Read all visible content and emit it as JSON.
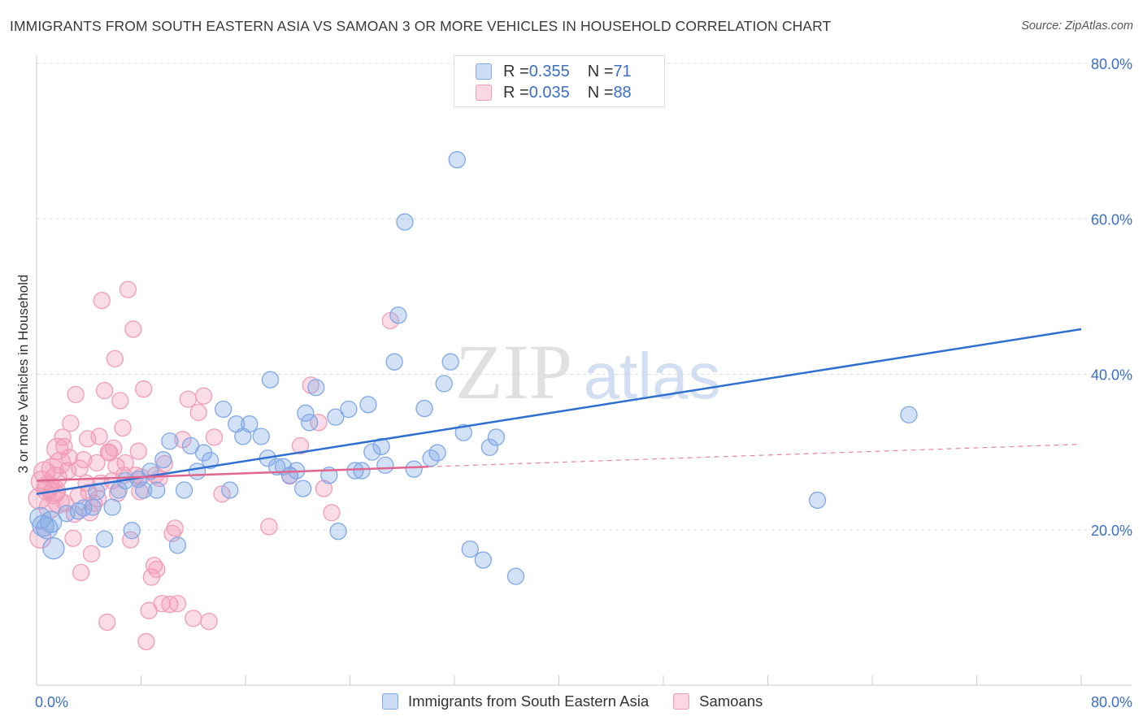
{
  "title": "IMMIGRANTS FROM SOUTH EASTERN ASIA VS SAMOAN 3 OR MORE VEHICLES IN HOUSEHOLD CORRELATION CHART",
  "source": "Source: ZipAtlas.com",
  "watermark": {
    "zip": "ZIP",
    "atlas": "atlas"
  },
  "legend_top": {
    "rows": [
      {
        "r_label": "R = ",
        "r_value": "0.355",
        "n_label": "N = ",
        "n_value": "71",
        "color": "#7fa8e6"
      },
      {
        "r_label": "R = ",
        "r_value": "0.035",
        "n_label": "N = ",
        "n_value": "88",
        "color": "#f29bb7"
      }
    ]
  },
  "legend_bottom": {
    "items": [
      {
        "label": "Immigrants from South Eastern Asia",
        "color": "#7fa8e6"
      },
      {
        "label": "Samoans",
        "color": "#f29bb7"
      }
    ]
  },
  "chart_data": {
    "type": "scatter",
    "title": "IMMIGRANTS FROM SOUTH EASTERN ASIA VS SAMOAN 3 OR MORE VEHICLES IN HOUSEHOLD CORRELATION CHART",
    "xlabel": "",
    "ylabel": "3 or more Vehicles in Household",
    "xlim": [
      0,
      80
    ],
    "ylim": [
      0,
      80
    ],
    "x_tick_labels": [
      "0.0%",
      "80.0%"
    ],
    "y_tick_labels": [
      "20.0%",
      "40.0%",
      "60.0%",
      "80.0%"
    ],
    "y_ticks": [
      20,
      40,
      60,
      80
    ],
    "grid": true,
    "legend_position": "top-center",
    "series": [
      {
        "name": "Immigrants from South Eastern Asia",
        "color": "#7fa8e6",
        "line_color": "#2f6fd0",
        "trend": {
          "x": [
            0,
            80
          ],
          "y": [
            24.6,
            45.8
          ]
        },
        "points": [
          [
            0.3,
            21.5
          ],
          [
            0.8,
            20.2
          ],
          [
            1.3,
            17.6
          ],
          [
            2.3,
            22.1
          ],
          [
            3.2,
            22.4
          ],
          [
            3.6,
            22.8
          ],
          [
            4.3,
            22.9
          ],
          [
            4.6,
            24.9
          ],
          [
            5.2,
            18.8
          ],
          [
            5.8,
            22.9
          ],
          [
            6.3,
            25.1
          ],
          [
            6.8,
            26.3
          ],
          [
            7.3,
            19.9
          ],
          [
            7.8,
            26.5
          ],
          [
            8.2,
            25.1
          ],
          [
            8.7,
            27.5
          ],
          [
            9.2,
            25.1
          ],
          [
            9.7,
            29.0
          ],
          [
            10.2,
            31.4
          ],
          [
            10.8,
            18.0
          ],
          [
            11.3,
            25.1
          ],
          [
            11.8,
            30.8
          ],
          [
            12.3,
            27.5
          ],
          [
            12.8,
            29.9
          ],
          [
            13.3,
            28.9
          ],
          [
            14.3,
            35.5
          ],
          [
            14.8,
            25.1
          ],
          [
            15.3,
            33.6
          ],
          [
            15.8,
            32.0
          ],
          [
            16.3,
            33.6
          ],
          [
            17.2,
            32.0
          ],
          [
            17.7,
            29.2
          ],
          [
            17.9,
            39.3
          ],
          [
            18.4,
            28.1
          ],
          [
            18.9,
            28.1
          ],
          [
            19.4,
            27.0
          ],
          [
            19.9,
            27.6
          ],
          [
            20.4,
            25.3
          ],
          [
            20.6,
            35.0
          ],
          [
            20.9,
            33.8
          ],
          [
            21.4,
            38.3
          ],
          [
            22.4,
            27.0
          ],
          [
            22.9,
            34.5
          ],
          [
            23.1,
            19.8
          ],
          [
            23.9,
            35.5
          ],
          [
            24.4,
            27.6
          ],
          [
            24.9,
            27.6
          ],
          [
            25.4,
            36.1
          ],
          [
            25.7,
            30.0
          ],
          [
            26.4,
            30.7
          ],
          [
            26.7,
            28.3
          ],
          [
            27.4,
            41.6
          ],
          [
            27.7,
            47.6
          ],
          [
            28.2,
            59.6
          ],
          [
            28.9,
            27.8
          ],
          [
            29.7,
            35.6
          ],
          [
            30.2,
            29.2
          ],
          [
            30.7,
            29.9
          ],
          [
            31.2,
            38.8
          ],
          [
            31.7,
            41.6
          ],
          [
            32.2,
            67.6
          ],
          [
            32.7,
            32.5
          ],
          [
            33.2,
            17.5
          ],
          [
            34.2,
            16.1
          ],
          [
            34.7,
            30.6
          ],
          [
            35.2,
            31.9
          ],
          [
            36.7,
            14.0
          ],
          [
            59.8,
            23.8
          ],
          [
            66.8,
            34.8
          ],
          [
            0.5,
            20.5
          ],
          [
            1.1,
            21.0
          ]
        ]
      },
      {
        "name": "Samoans",
        "color": "#f29bb7",
        "line_color": "#e0668f",
        "trend": {
          "x": [
            0,
            30
          ],
          "y": [
            26.3,
            28.1
          ]
        },
        "trend_dashed": {
          "x": [
            30,
            80
          ],
          "y": [
            28.1,
            31.0
          ]
        },
        "points": [
          [
            0.2,
            24.0
          ],
          [
            0.4,
            26.2
          ],
          [
            0.6,
            27.4
          ],
          [
            0.8,
            25.2
          ],
          [
            1.0,
            22.8
          ],
          [
            1.2,
            27.8
          ],
          [
            1.4,
            25.0
          ],
          [
            1.6,
            30.4
          ],
          [
            1.8,
            28.6
          ],
          [
            2.0,
            31.9
          ],
          [
            2.2,
            23.4
          ],
          [
            2.4,
            27.6
          ],
          [
            2.6,
            33.7
          ],
          [
            2.8,
            18.9
          ],
          [
            3.0,
            37.4
          ],
          [
            3.2,
            24.4
          ],
          [
            3.4,
            14.5
          ],
          [
            3.6,
            29.0
          ],
          [
            3.8,
            26.0
          ],
          [
            4.0,
            24.8
          ],
          [
            4.2,
            16.9
          ],
          [
            4.4,
            23.4
          ],
          [
            4.6,
            28.6
          ],
          [
            4.8,
            32.0
          ],
          [
            5.0,
            49.5
          ],
          [
            5.2,
            37.9
          ],
          [
            5.4,
            8.1
          ],
          [
            5.6,
            29.9
          ],
          [
            5.8,
            26.3
          ],
          [
            6.0,
            42.0
          ],
          [
            6.2,
            24.7
          ],
          [
            6.4,
            36.6
          ],
          [
            6.6,
            33.1
          ],
          [
            6.8,
            28.6
          ],
          [
            7.0,
            50.9
          ],
          [
            7.2,
            18.7
          ],
          [
            7.4,
            45.8
          ],
          [
            7.6,
            27.0
          ],
          [
            7.8,
            30.1
          ],
          [
            8.0,
            26.8
          ],
          [
            8.2,
            38.1
          ],
          [
            8.4,
            5.6
          ],
          [
            8.6,
            9.6
          ],
          [
            8.8,
            13.9
          ],
          [
            9.0,
            15.4
          ],
          [
            9.2,
            14.9
          ],
          [
            9.4,
            26.6
          ],
          [
            9.6,
            10.5
          ],
          [
            9.8,
            28.5
          ],
          [
            10.2,
            10.4
          ],
          [
            10.4,
            19.5
          ],
          [
            10.8,
            10.5
          ],
          [
            11.2,
            31.6
          ],
          [
            11.6,
            36.8
          ],
          [
            12.0,
            8.6
          ],
          [
            12.4,
            35.1
          ],
          [
            12.8,
            37.2
          ],
          [
            13.2,
            8.2
          ],
          [
            13.6,
            31.9
          ],
          [
            14.2,
            24.6
          ],
          [
            17.8,
            20.4
          ],
          [
            19.4,
            26.9
          ],
          [
            20.2,
            30.8
          ],
          [
            21.0,
            38.6
          ],
          [
            21.6,
            33.8
          ],
          [
            22.0,
            25.3
          ],
          [
            22.6,
            22.2
          ],
          [
            27.1,
            46.9
          ],
          [
            1.3,
            24.7
          ],
          [
            2.1,
            30.7
          ],
          [
            3.9,
            31.7
          ],
          [
            4.9,
            26.0
          ],
          [
            5.9,
            30.5
          ],
          [
            6.7,
            27.0
          ],
          [
            7.9,
            24.9
          ],
          [
            9.1,
            27.0
          ],
          [
            10.6,
            20.2
          ],
          [
            0.3,
            19.0
          ],
          [
            0.9,
            25.6
          ],
          [
            1.7,
            23.5
          ],
          [
            2.5,
            29.3
          ],
          [
            3.3,
            27.9
          ],
          [
            4.1,
            22.2
          ],
          [
            4.7,
            24.0
          ],
          [
            5.5,
            30.0
          ],
          [
            6.1,
            28.2
          ],
          [
            2.9,
            22.0
          ],
          [
            1.5,
            26.7
          ]
        ]
      }
    ]
  }
}
